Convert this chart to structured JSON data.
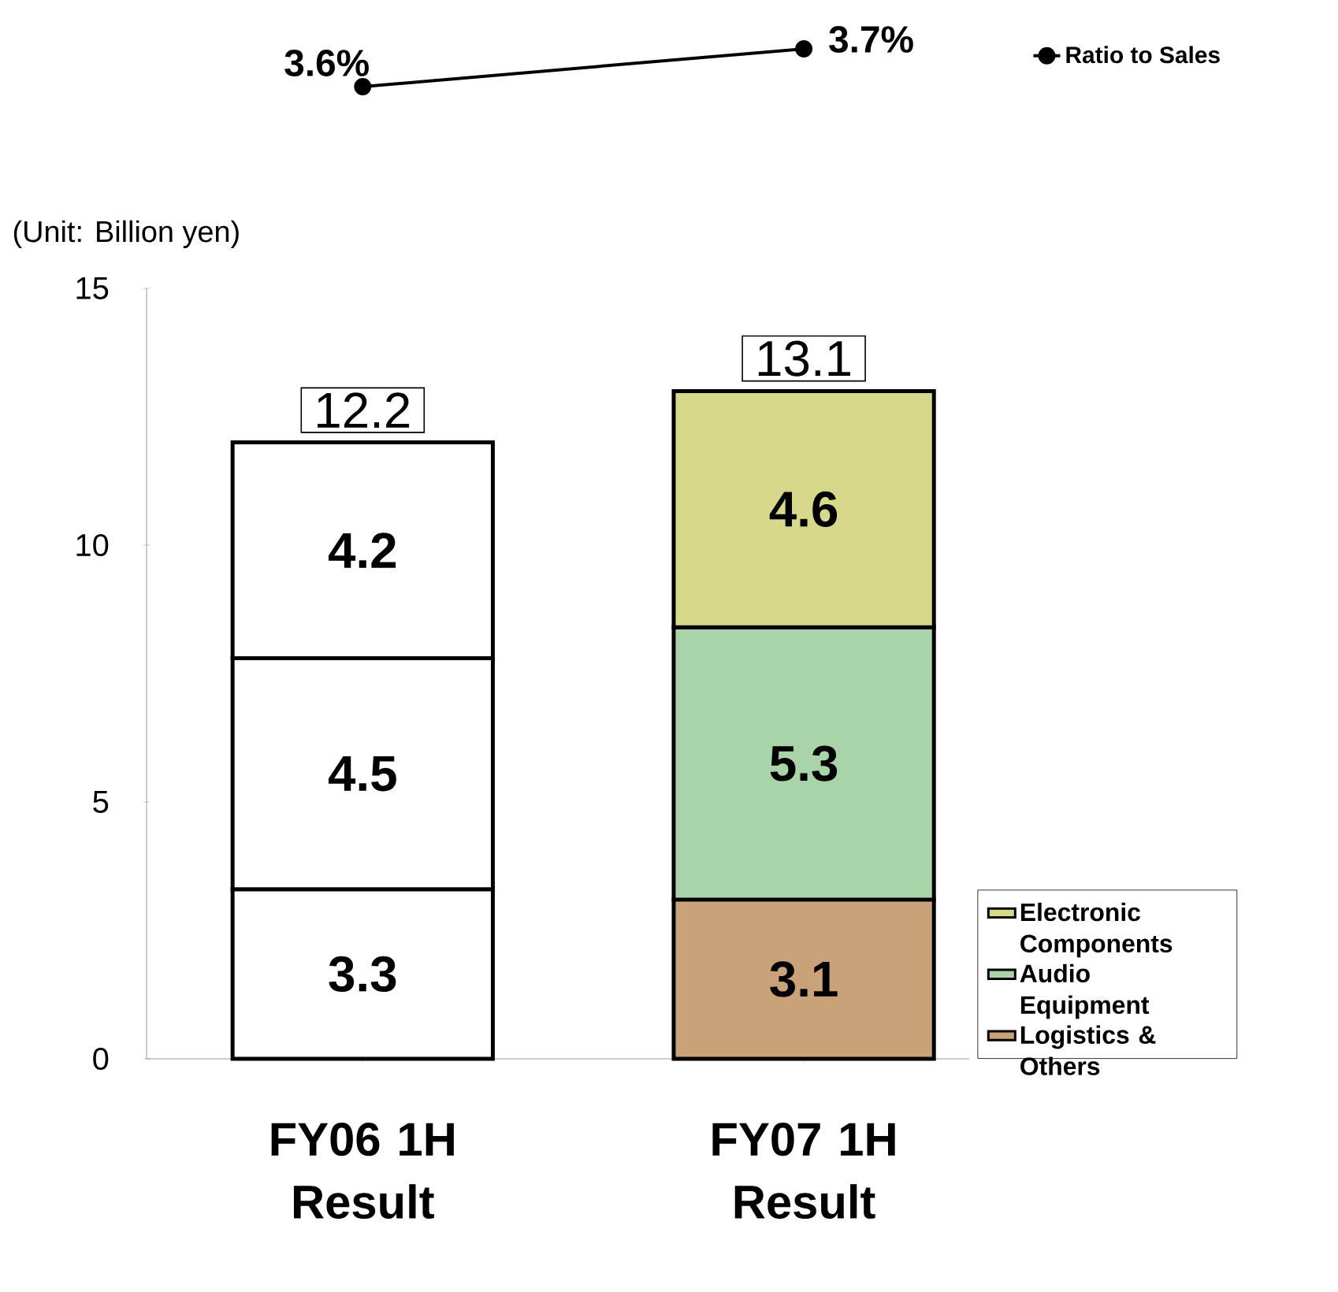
{
  "chart_data": [
    {
      "type": "line",
      "categories": [
        null,
        null
      ],
      "tick_labels": false,
      "marker": "circle",
      "legend": "right",
      "series": [
        {
          "name": "Ratio to Sales",
          "color": "#000000",
          "values": [
            3.6,
            3.7
          ],
          "value_labels": [
            "3.6%",
            "3.7%"
          ]
        }
      ]
    },
    {
      "type": "bar",
      "stacked": true,
      "categories": [
        "FY06 1H Result",
        "FY07 1H Result"
      ],
      "ylabel": "(Unit: Billion yen)",
      "ylim": [
        0,
        15
      ],
      "yticks": [
        0,
        5,
        10,
        15
      ],
      "data_labels": true,
      "totals": [
        "12.2",
        "13.1"
      ],
      "legend": "right",
      "series": [
        {
          "name": "Logistics & Others",
          "colors": [
            "#ffffff",
            "#c9a27a"
          ],
          "values": [
            3.3,
            3.1
          ]
        },
        {
          "name": "Audio Equipment",
          "colors": [
            "#ffffff",
            "#a9d4aa"
          ],
          "values": [
            4.5,
            5.3
          ]
        },
        {
          "name": "Electronic Components",
          "colors": [
            "#ffffff",
            "#d8d88a"
          ],
          "values": [
            4.2,
            4.6
          ]
        }
      ]
    }
  ]
}
